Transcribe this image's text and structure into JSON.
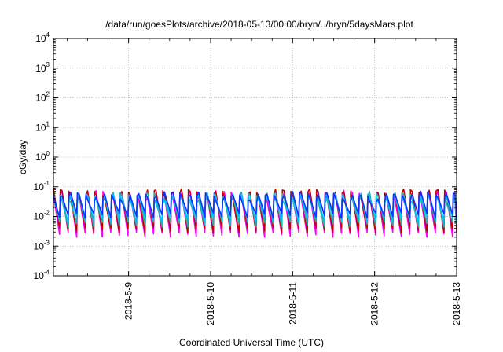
{
  "chart_data": {
    "type": "line",
    "title": "/data/run/goesPlots/archive/2018-05-13/00:00/bryn/../bryn/5daysMars.plot",
    "xlabel": "Coordinated Universal Time (UTC)",
    "ylabel": "cGy/day",
    "yscale": "log",
    "ylim": [
      0.0001,
      10000
    ],
    "y_ticks": [
      {
        "base": "10",
        "exp": "-4",
        "value": 0.0001
      },
      {
        "base": "10",
        "exp": "-3",
        "value": 0.001
      },
      {
        "base": "10",
        "exp": "-2",
        "value": 0.01
      },
      {
        "base": "10",
        "exp": "-1",
        "value": 0.1
      },
      {
        "base": "10",
        "exp": "0",
        "value": 1
      },
      {
        "base": "10",
        "exp": "1",
        "value": 10
      },
      {
        "base": "10",
        "exp": "2",
        "value": 100
      },
      {
        "base": "10",
        "exp": "3",
        "value": 1000
      },
      {
        "base": "10",
        "exp": "4",
        "value": 10000
      }
    ],
    "x_range": [
      "2018-05-08 02:00",
      "2018-05-13 00:00"
    ],
    "x_ticks": [
      "2018-5-9",
      "2018-5-10",
      "2018-5-11",
      "2018-5-12",
      "2018-5-13"
    ],
    "x_tick_dates": [
      "2018-05-09",
      "2018-05-10",
      "2018-05-11",
      "2018-05-12",
      "2018-05-13"
    ],
    "grid": true,
    "series_colors": [
      "#ff00ff",
      "#c00000",
      "#20b2aa",
      "#00bfff",
      "#1030ff"
    ],
    "cycle_hours": 2.5,
    "series": [
      {
        "peak_value": 0.055,
        "trough_value": 0.0025
      },
      {
        "peak_value": 0.062,
        "trough_value": 0.0035
      },
      {
        "peak_value": 0.048,
        "trough_value": 0.0055
      },
      {
        "peak_value": 0.045,
        "trough_value": 0.008
      },
      {
        "peak_value": 0.05,
        "trough_value": 0.011
      }
    ]
  }
}
